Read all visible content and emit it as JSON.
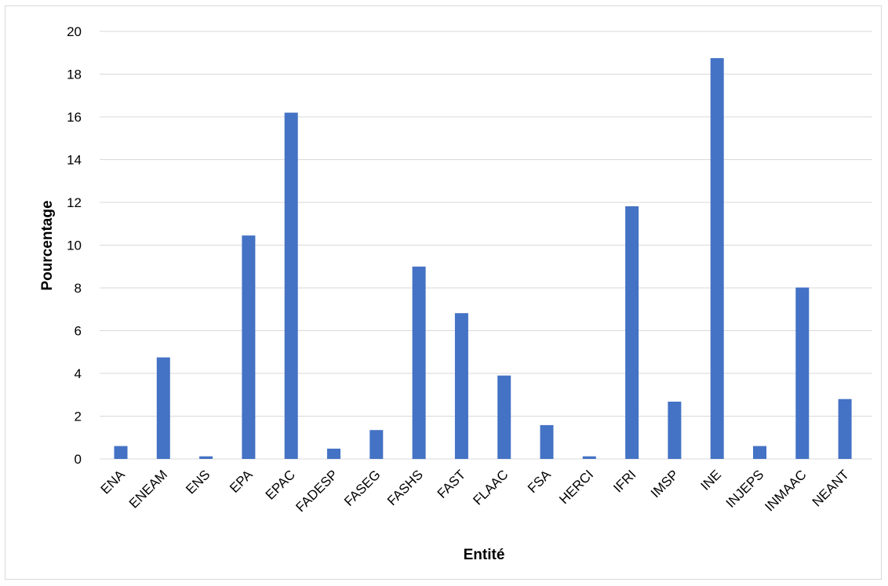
{
  "chart_data": {
    "type": "bar",
    "title": "",
    "xlabel": "Entité",
    "ylabel": "Pourcentage",
    "categories": [
      "ENA",
      "ENEAM",
      "ENS",
      "EPA",
      "EPAC",
      "FADESP",
      "FASEG",
      "FASHS",
      "FAST",
      "FLAAC",
      "FSA",
      "HERCI",
      "IFRI",
      "IMSP",
      "INE",
      "INJEPS",
      "INMAAC",
      "NEANT"
    ],
    "values": [
      0.6,
      4.75,
      0.12,
      10.45,
      16.2,
      0.48,
      1.35,
      9.0,
      6.82,
      3.9,
      1.58,
      0.12,
      11.82,
      2.68,
      18.75,
      0.6,
      8.02,
      2.8
    ],
    "ylim": [
      0,
      20
    ],
    "yticks": [
      "0",
      "2",
      "4",
      "6",
      "8",
      "10",
      "12",
      "14",
      "16",
      "18",
      "20"
    ],
    "grid": true,
    "legend": "none",
    "colors": {
      "bar": "#4472c4",
      "grid": "#d9d9d9",
      "frame": "#d9d9d9"
    }
  }
}
